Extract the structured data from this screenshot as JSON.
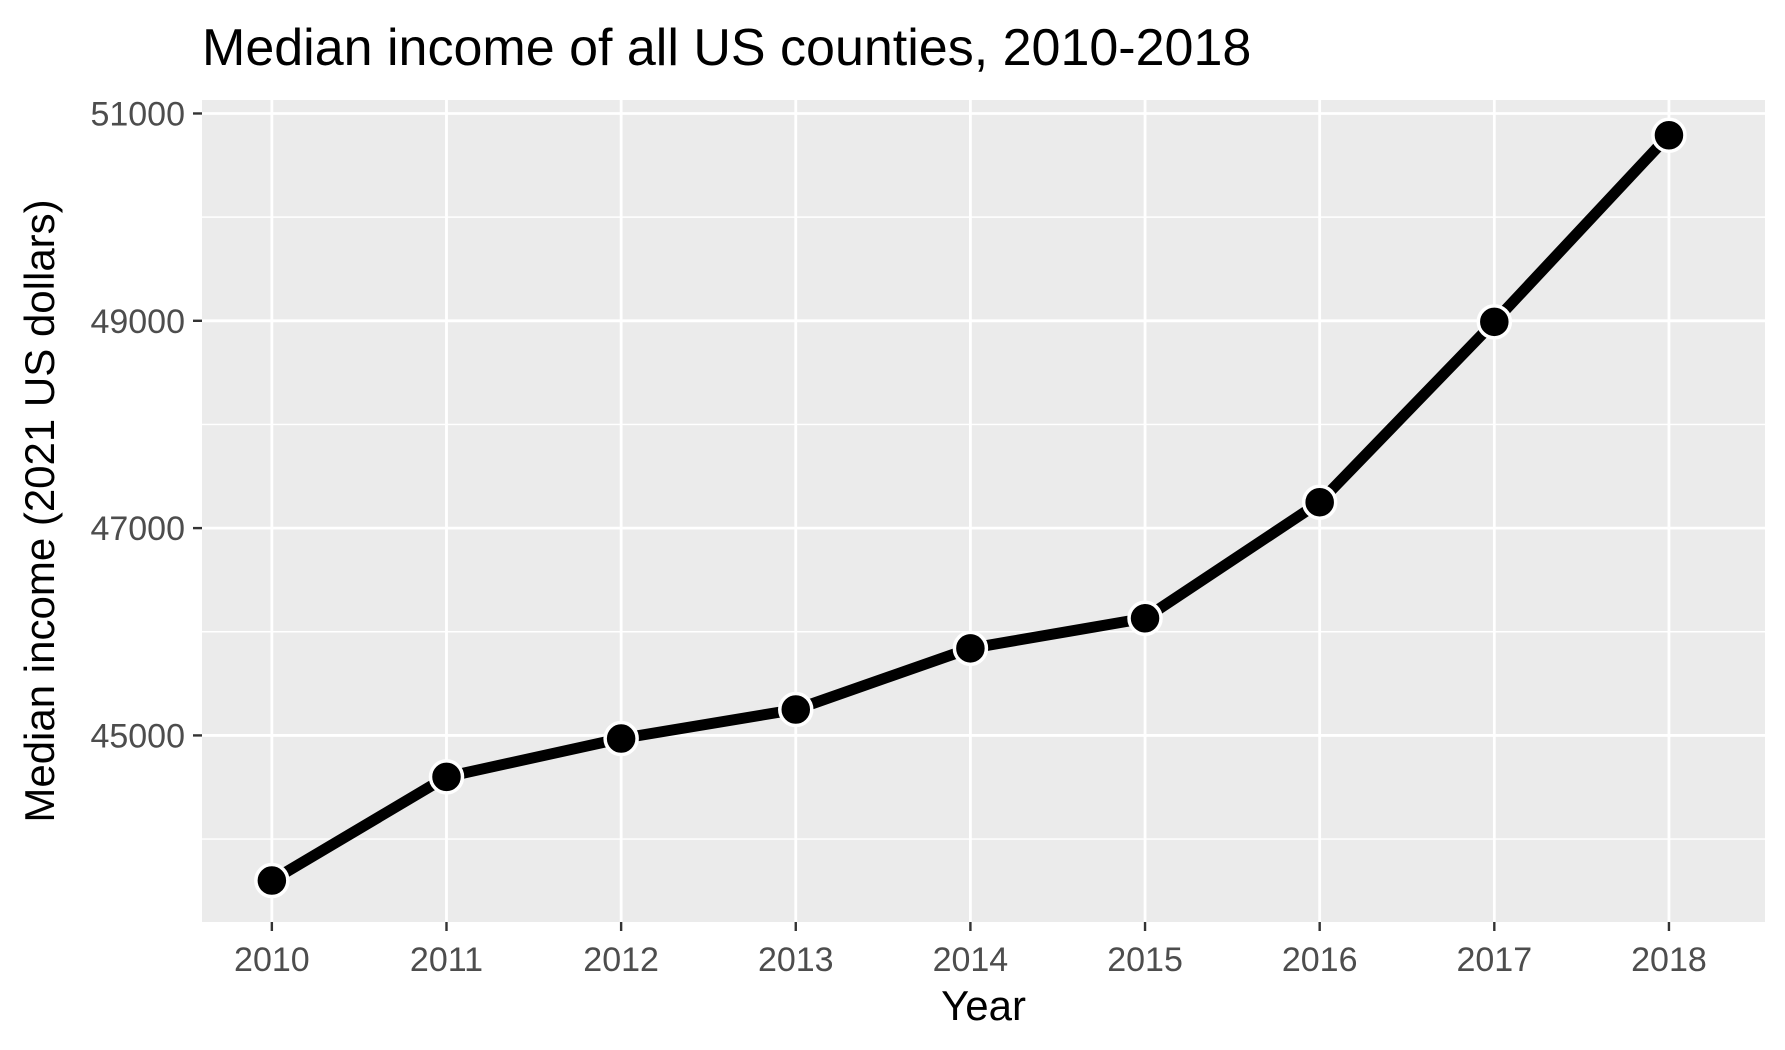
{
  "chart_data": {
    "type": "line",
    "title": "Median income of all US counties, 2010-2018",
    "xlabel": "Year",
    "ylabel": "Median income (2021 US dollars)",
    "x": [
      2010,
      2011,
      2012,
      2013,
      2014,
      2015,
      2016,
      2017,
      2018
    ],
    "x_tick_labels": [
      "2010",
      "2011",
      "2012",
      "2013",
      "2014",
      "2015",
      "2016",
      "2017",
      "2018"
    ],
    "y_tick_labels": [
      "45000",
      "47000",
      "49000",
      "51000"
    ],
    "y_ticks": [
      45000,
      47000,
      49000,
      51000
    ],
    "series": [
      {
        "values": [
          43600,
          44600,
          44970,
          45250,
          45840,
          46130,
          47250,
          48990,
          50790
        ]
      }
    ],
    "xlim": [
      2009.6,
      2018.55
    ],
    "ylim": [
      43200,
      51130
    ],
    "grid": true,
    "legend": "none",
    "colors": {
      "panel_background": "#ebebeb",
      "grid_line": "#ffffff",
      "series_line": "#000000",
      "point_fill": "#000000",
      "point_stroke": "#ffffff",
      "tick_mark": "#333333"
    }
  }
}
